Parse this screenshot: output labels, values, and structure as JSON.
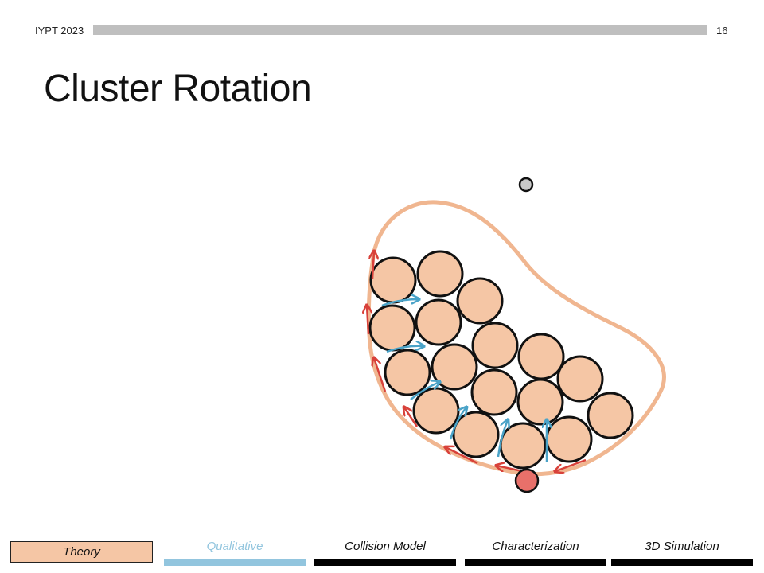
{
  "header": {
    "event": "IYPT 2023",
    "page_number": "16"
  },
  "title": "Cluster Rotation",
  "nav": {
    "items": [
      {
        "label": "Theory",
        "state": "active"
      },
      {
        "label": "Qualitative",
        "state": "current",
        "color": "#92c5de"
      },
      {
        "label": "Collision Model",
        "state": "default",
        "color": "#000000"
      },
      {
        "label": "Characterization",
        "state": "default",
        "color": "#000000"
      },
      {
        "label": "3D Simulation",
        "state": "default",
        "color": "#000000"
      }
    ]
  },
  "colors": {
    "particle_fill": "#f5c6a5",
    "boundary": "#f0b690",
    "red_arrow": "#d8413a",
    "blue_arrow": "#4aa3c8",
    "small_grey_particle": "#c8c8c8",
    "red_particle": "#e8706a"
  }
}
